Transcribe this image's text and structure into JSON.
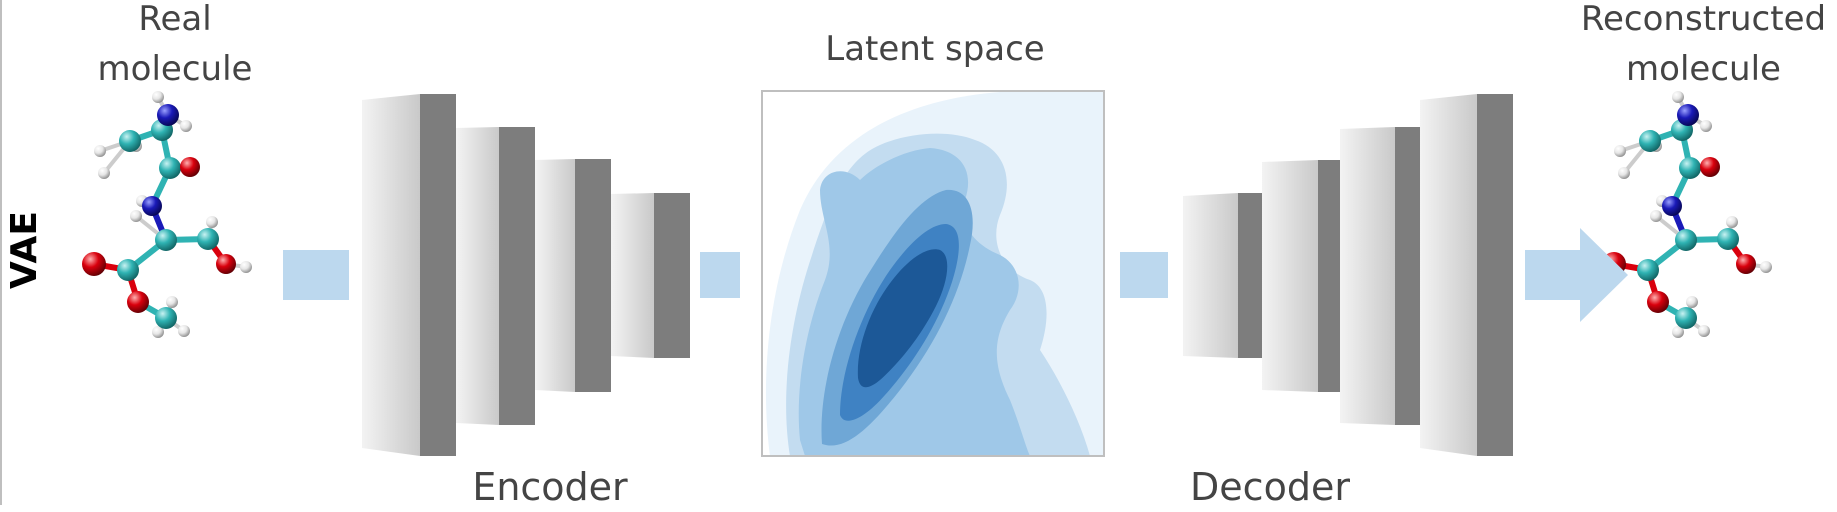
{
  "row_label": "VAE",
  "input_label_line1": "Real",
  "input_label_line2": "molecule",
  "output_label_line1": "Reconstructed",
  "output_label_line2": "molecule",
  "latent_label": "Latent space",
  "encoder_label": "Encoder",
  "decoder_label": "Decoder",
  "colors": {
    "connector": "#bcd8ee",
    "layer_face": "#d6d6d6",
    "layer_side": "#7d7d7d",
    "latent_levels": [
      "#e9f3fb",
      "#c3dcf0",
      "#9fc8e8",
      "#6fa7d6",
      "#3f82c3",
      "#1c5897"
    ],
    "carbon": "#2fb3b3",
    "nitrogen": "#1a1ab8",
    "oxygen": "#d9000d",
    "hydrogen": "#eeeeee"
  }
}
